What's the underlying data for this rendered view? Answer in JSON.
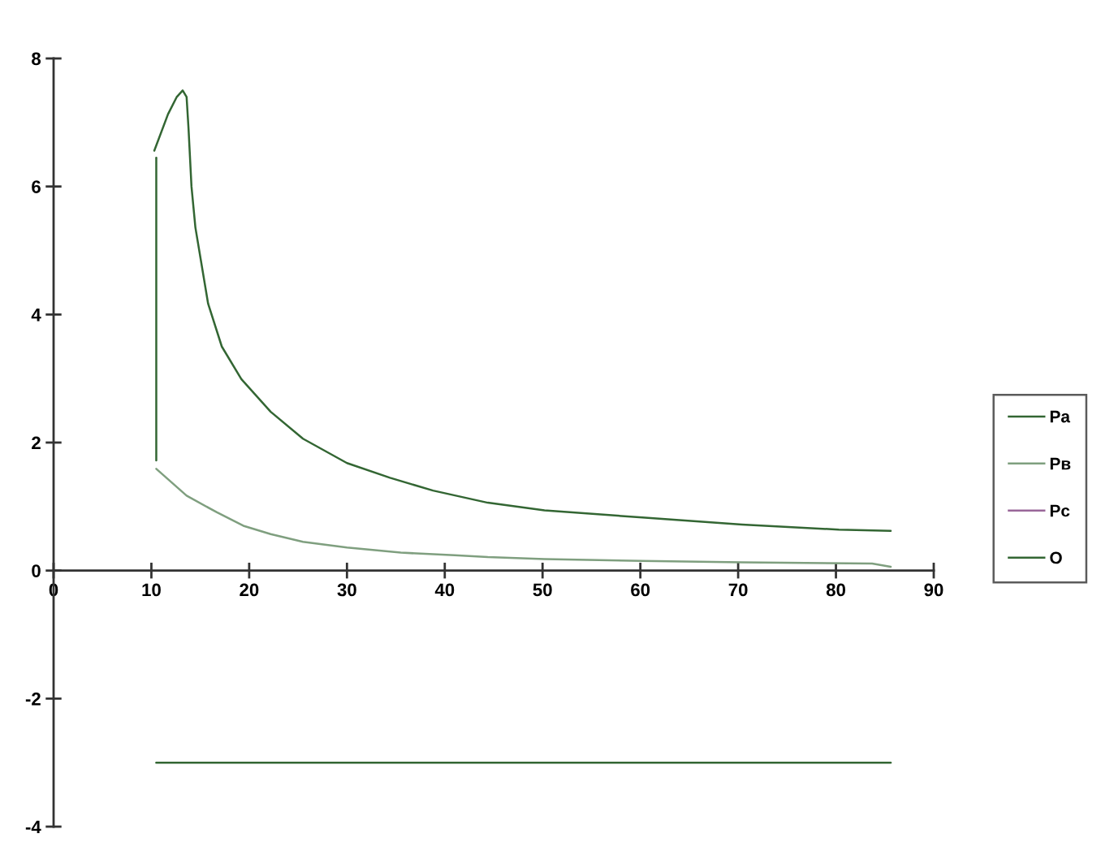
{
  "chart_data": {
    "type": "line",
    "xlim": [
      0,
      90
    ],
    "xticks": [
      0,
      10,
      20,
      30,
      40,
      50,
      60,
      70,
      80,
      90
    ],
    "ylim": [
      -4,
      8
    ],
    "yticks": [
      -4,
      -2,
      0,
      2,
      4,
      6,
      8
    ],
    "legend": "right",
    "series": [
      {
        "name": "Pa",
        "color": "#336633",
        "x": [
          10.3,
          11.7,
          12.6,
          13.2,
          13.6,
          13.8,
          14.1,
          14.5,
          15.8,
          17.2,
          19.2,
          22.2,
          25.5,
          30,
          34.4,
          38.8,
          44.4,
          50.2,
          60.2,
          70.4,
          80.3,
          85.6
        ],
        "values": [
          6.56,
          7.13,
          7.4,
          7.5,
          7.4,
          6.9,
          6.0,
          5.36,
          4.17,
          3.5,
          2.99,
          2.48,
          2.06,
          1.68,
          1.45,
          1.25,
          1.06,
          0.94,
          0.83,
          0.72,
          0.64,
          0.62
        ]
      },
      {
        "name": "Pв",
        "color": "#7f9f7f",
        "x": [
          10.5,
          13.6,
          16.7,
          19.4,
          22.2,
          25.5,
          30,
          35.5,
          41,
          44.4,
          50.2,
          60.2,
          70.4,
          83.7,
          85.6
        ],
        "values": [
          1.59,
          1.17,
          0.91,
          0.7,
          0.57,
          0.45,
          0.36,
          0.28,
          0.24,
          0.21,
          0.18,
          0.15,
          0.13,
          0.11,
          0.06
        ]
      },
      {
        "name": "Pc",
        "color": "#996699"
      },
      {
        "name": "O",
        "color": "#336633",
        "x": [
          10.5,
          85.6
        ],
        "values": [
          -3,
          -3
        ]
      },
      {
        "color": "#336633",
        "x": [
          10.5,
          10.5
        ],
        "values": [
          1.72,
          6.45
        ]
      }
    ]
  }
}
